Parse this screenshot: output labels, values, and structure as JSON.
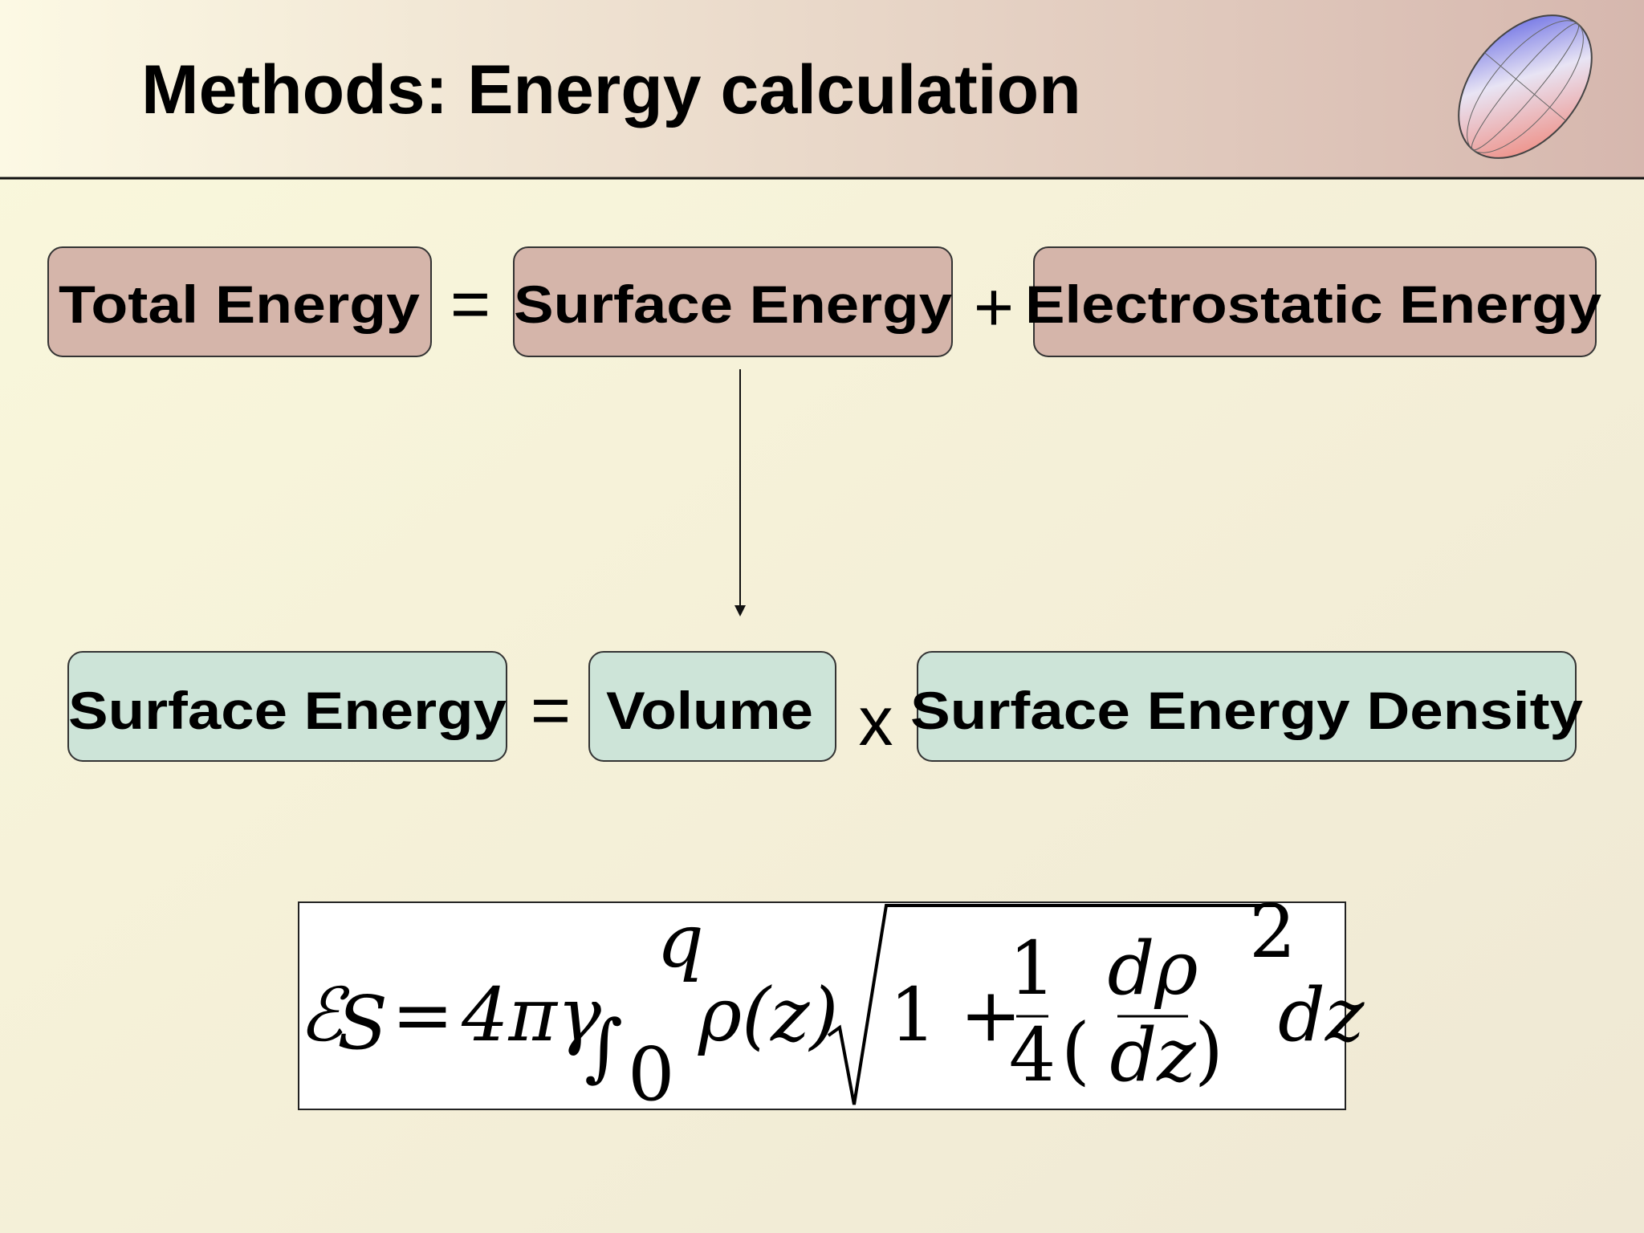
{
  "header": {
    "title": "Methods: Energy calculation"
  },
  "rows": [
    {
      "terms": [
        "Total Energy",
        "Surface Energy",
        "Electrostatic Energy"
      ],
      "operators": [
        "=",
        "+"
      ]
    },
    {
      "terms": [
        "Surface Energy",
        "Volume",
        "Surface Energy Density"
      ],
      "operators": [
        "=",
        "x"
      ]
    }
  ],
  "formula": {
    "parts": [
      "ℰ",
      "S",
      "=",
      "4πγ",
      "∫",
      "q",
      "0",
      "ρ(z)",
      "1 +",
      "1",
      "4",
      "(",
      "dρ",
      "dz",
      ")",
      "2",
      "dz"
    ]
  }
}
